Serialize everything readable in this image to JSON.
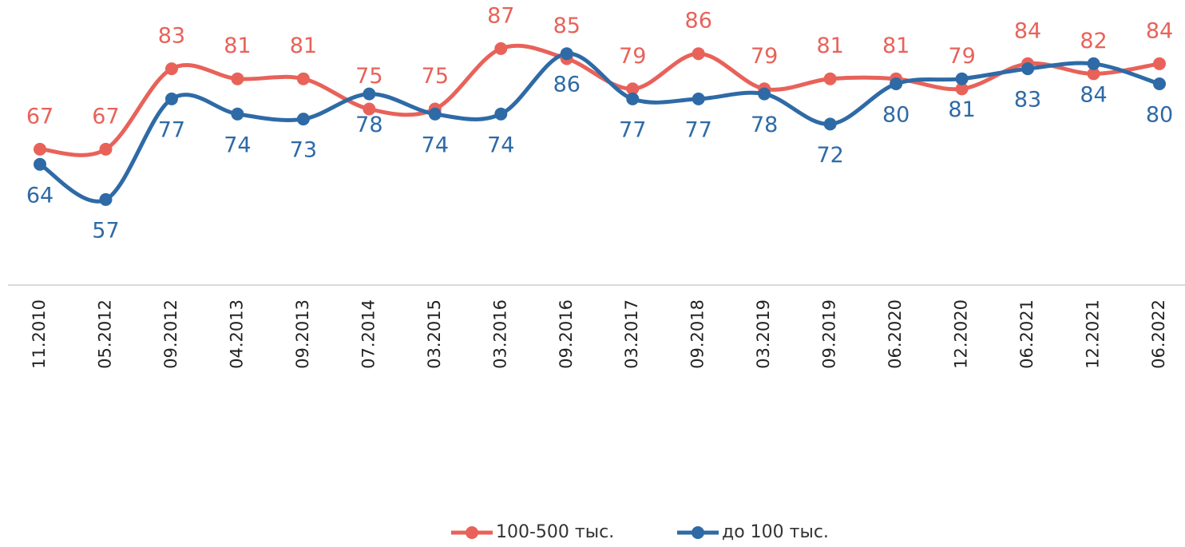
{
  "chart_data": {
    "type": "line",
    "categories": [
      "11.2010",
      "05.2012",
      "09.2012",
      "04.2013",
      "09.2013",
      "07.2014",
      "03.2015",
      "03.2016",
      "09.2016",
      "03.2017",
      "09.2018",
      "03.2019",
      "09.2019",
      "06.2020",
      "12.2020",
      "06.2021",
      "12.2021",
      "06.2022"
    ],
    "series": [
      {
        "name": "100-500 тыс.",
        "color": "#e8625a",
        "values": [
          67,
          67,
          83,
          81,
          81,
          75,
          75,
          87,
          85,
          79,
          86,
          79,
          81,
          81,
          79,
          84,
          82,
          84
        ]
      },
      {
        "name": "до 100 тыс.",
        "color": "#2e6aa6",
        "values": [
          64,
          57,
          77,
          74,
          73,
          78,
          74,
          74,
          86,
          77,
          77,
          78,
          72,
          80,
          81,
          83,
          84,
          80
        ]
      }
    ],
    "ylim": [
      40,
      95
    ],
    "legend": "bottom"
  }
}
